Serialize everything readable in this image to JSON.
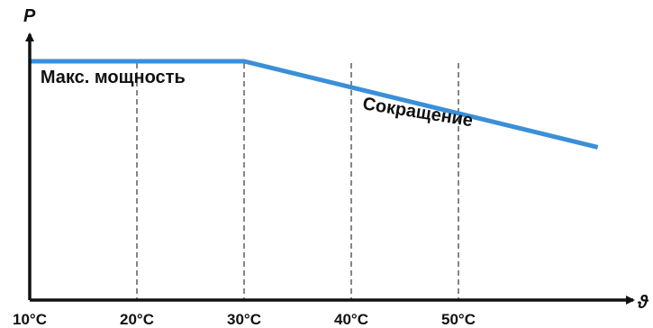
{
  "chart_data": {
    "type": "line",
    "title": "",
    "xlabel": "ϑ",
    "ylabel": "P",
    "xlim": [
      10,
      60
    ],
    "ylim": [
      0,
      1
    ],
    "x_tick_values": [
      10,
      20,
      30,
      40,
      50
    ],
    "x_tick_labels": [
      "10°C",
      "20°C",
      "30°C",
      "40°C",
      "50°C"
    ],
    "guide_lines_x": [
      20,
      30,
      40,
      50
    ],
    "grid": false,
    "legend": "none",
    "series": [
      {
        "color": "#3a8fd8",
        "x": [
          10,
          30,
          63
        ],
        "y": [
          1.0,
          1.0,
          0.64
        ]
      }
    ],
    "annotations": [
      {
        "text": "Макс. мощность",
        "x": 11,
        "y": 0.91,
        "rotate": 0
      },
      {
        "text": "Сокращение",
        "x": 41,
        "y": 0.8,
        "rotate": 9
      }
    ]
  }
}
